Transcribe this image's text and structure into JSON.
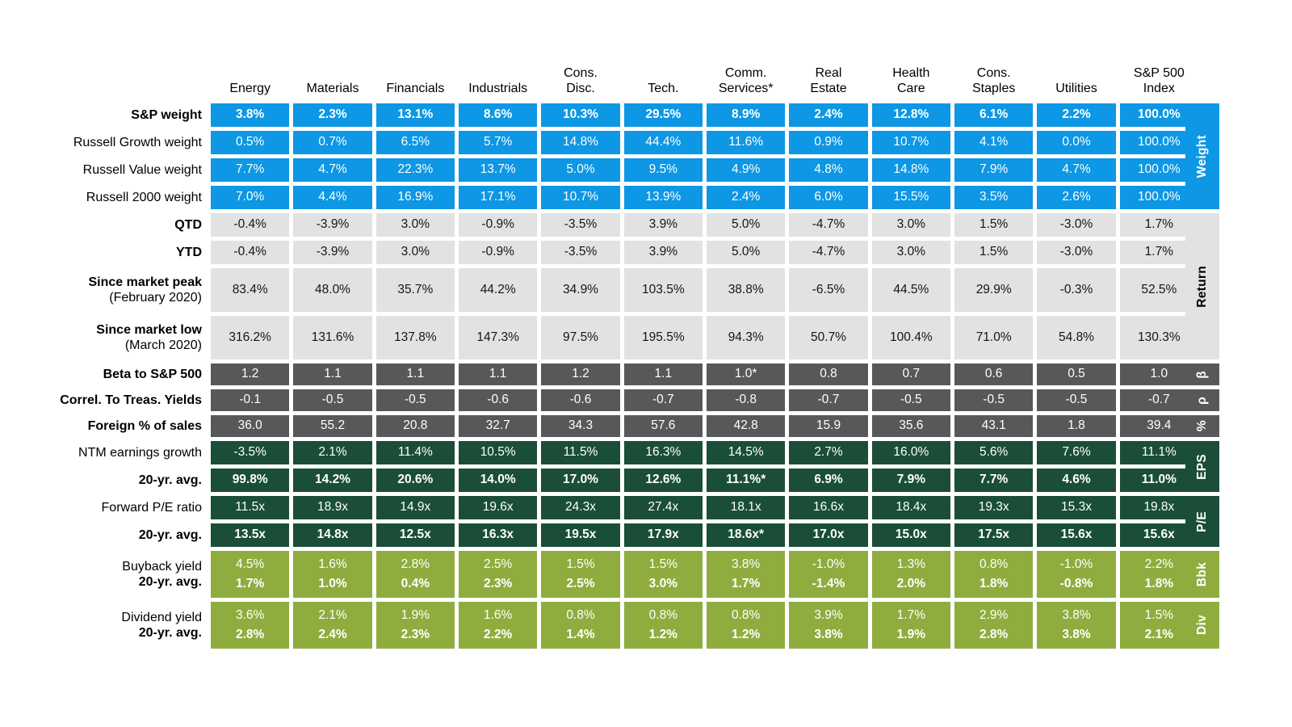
{
  "chart_data": {
    "type": "table",
    "colors": {
      "blue": "#0d97e4",
      "gray": "#e2e2e2",
      "dark": "#56585a",
      "darkgreen": "#1a4e38",
      "lightgreen": "#8fad3e"
    },
    "columns": [
      "Energy",
      "Materials",
      "Financials",
      "Industrials",
      "Cons.\nDisc.",
      "Tech.",
      "Comm.\nServices*",
      "Real\nEstate",
      "Health\nCare",
      "Cons.\nStaples",
      "Utilities",
      "S&P 500\nIndex"
    ],
    "rows": [
      {
        "label": "S&P weight",
        "label_bold": true,
        "style": "blue",
        "bold": true,
        "values": [
          "3.8%",
          "2.3%",
          "13.1%",
          "8.6%",
          "10.3%",
          "29.5%",
          "8.9%",
          "2.4%",
          "12.8%",
          "6.1%",
          "2.2%",
          "100.0%"
        ]
      },
      {
        "label": "Russell Growth weight",
        "label_bold": false,
        "style": "blue",
        "values": [
          "0.5%",
          "0.7%",
          "6.5%",
          "5.7%",
          "14.8%",
          "44.4%",
          "11.6%",
          "0.9%",
          "10.7%",
          "4.1%",
          "0.0%",
          "100.0%"
        ]
      },
      {
        "label": "Russell Value weight",
        "label_bold": false,
        "style": "blue",
        "values": [
          "7.7%",
          "4.7%",
          "22.3%",
          "13.7%",
          "5.0%",
          "9.5%",
          "4.9%",
          "4.8%",
          "14.8%",
          "7.9%",
          "4.7%",
          "100.0%"
        ]
      },
      {
        "label": "Russell 2000 weight",
        "label_bold": false,
        "style": "blue",
        "values": [
          "7.0%",
          "4.4%",
          "16.9%",
          "17.1%",
          "10.7%",
          "13.9%",
          "2.4%",
          "6.0%",
          "15.5%",
          "3.5%",
          "2.6%",
          "100.0%"
        ]
      },
      {
        "label": "QTD",
        "label_bold": true,
        "style": "gray",
        "values": [
          "-0.4%",
          "-3.9%",
          "3.0%",
          "-0.9%",
          "-3.5%",
          "3.9%",
          "5.0%",
          "-4.7%",
          "3.0%",
          "1.5%",
          "-3.0%",
          "1.7%"
        ]
      },
      {
        "label": "YTD",
        "label_bold": true,
        "style": "gray",
        "values": [
          "-0.4%",
          "-3.9%",
          "3.0%",
          "-0.9%",
          "-3.5%",
          "3.9%",
          "5.0%",
          "-4.7%",
          "3.0%",
          "1.5%",
          "-3.0%",
          "1.7%"
        ]
      },
      {
        "label": "Since market peak",
        "label_bold": true,
        "sublabel": "(February 2020)",
        "style": "gray",
        "values": [
          "83.4%",
          "48.0%",
          "35.7%",
          "44.2%",
          "34.9%",
          "103.5%",
          "38.8%",
          "-6.5%",
          "44.5%",
          "29.9%",
          "-0.3%",
          "52.5%"
        ]
      },
      {
        "label": "Since market low",
        "label_bold": true,
        "sublabel": "(March 2020)",
        "style": "gray",
        "values": [
          "316.2%",
          "131.6%",
          "137.8%",
          "147.3%",
          "97.5%",
          "195.5%",
          "94.3%",
          "50.7%",
          "100.4%",
          "71.0%",
          "54.8%",
          "130.3%"
        ]
      },
      {
        "label": "Beta to S&P 500",
        "label_bold": true,
        "style": "dark",
        "values": [
          "1.2",
          "1.1",
          "1.1",
          "1.1",
          "1.2",
          "1.1",
          "1.0*",
          "0.8",
          "0.7",
          "0.6",
          "0.5",
          "1.0"
        ]
      },
      {
        "label": "Correl. To Treas. Yields",
        "label_bold": true,
        "style": "dark",
        "values": [
          "-0.1",
          "-0.5",
          "-0.5",
          "-0.6",
          "-0.6",
          "-0.7",
          "-0.8",
          "-0.7",
          "-0.5",
          "-0.5",
          "-0.5",
          "-0.7"
        ]
      },
      {
        "label": "Foreign % of sales",
        "label_bold": true,
        "style": "dark",
        "values": [
          "36.0",
          "55.2",
          "20.8",
          "32.7",
          "34.3",
          "57.6",
          "42.8",
          "15.9",
          "35.6",
          "43.1",
          "1.8",
          "39.4"
        ]
      },
      {
        "label": "NTM earnings growth",
        "label_bold": false,
        "style": "darkgreen",
        "values": [
          "-3.5%",
          "2.1%",
          "11.4%",
          "10.5%",
          "11.5%",
          "16.3%",
          "14.5%",
          "2.7%",
          "16.0%",
          "5.6%",
          "7.6%",
          "11.1%"
        ]
      },
      {
        "label": "20-yr. avg.",
        "label_bold": true,
        "style": "darkgreen",
        "bold": true,
        "values": [
          "99.8%",
          "14.2%",
          "20.6%",
          "14.0%",
          "17.0%",
          "12.6%",
          "11.1%*",
          "6.9%",
          "7.9%",
          "7.7%",
          "4.6%",
          "11.0%"
        ]
      },
      {
        "label": "Forward P/E ratio",
        "label_bold": false,
        "style": "darkgreen",
        "values": [
          "11.5x",
          "18.9x",
          "14.9x",
          "19.6x",
          "24.3x",
          "27.4x",
          "18.1x",
          "16.6x",
          "18.4x",
          "19.3x",
          "15.3x",
          "19.8x"
        ]
      },
      {
        "label": "20-yr. avg.",
        "label_bold": true,
        "style": "darkgreen",
        "bold": true,
        "values": [
          "13.5x",
          "14.8x",
          "12.5x",
          "16.3x",
          "19.5x",
          "17.9x",
          "18.6x*",
          "17.0x",
          "15.0x",
          "17.5x",
          "15.6x",
          "15.6x"
        ]
      },
      {
        "label": "Buyback yield",
        "label_bold": false,
        "label2": "20-yr. avg.",
        "style": "lightgreen",
        "values": [
          "4.5%",
          "1.6%",
          "2.8%",
          "2.5%",
          "1.5%",
          "1.5%",
          "3.8%",
          "-1.0%",
          "1.3%",
          "0.8%",
          "-1.0%",
          "2.2%"
        ],
        "values2": [
          "1.7%",
          "1.0%",
          "0.4%",
          "2.3%",
          "2.5%",
          "3.0%",
          "1.7%",
          "-1.4%",
          "2.0%",
          "1.8%",
          "-0.8%",
          "1.8%"
        ]
      },
      {
        "label": "Dividend yield",
        "label_bold": false,
        "label2": "20-yr. avg.",
        "style": "lightgreen",
        "values": [
          "3.6%",
          "2.1%",
          "1.9%",
          "1.6%",
          "0.8%",
          "0.8%",
          "0.8%",
          "3.9%",
          "1.7%",
          "2.9%",
          "3.8%",
          "1.5%"
        ],
        "values2": [
          "2.8%",
          "2.4%",
          "2.3%",
          "2.2%",
          "1.4%",
          "1.2%",
          "1.2%",
          "3.8%",
          "1.9%",
          "2.8%",
          "3.8%",
          "2.1%"
        ]
      }
    ],
    "side_labels": [
      {
        "text": "Weight",
        "style": "blue",
        "from": 0,
        "to": 3
      },
      {
        "text": "Return",
        "style": "gray",
        "from": 4,
        "to": 7
      },
      {
        "text": "β",
        "style": "dark",
        "from": 8,
        "to": 8
      },
      {
        "text": "ρ",
        "style": "dark",
        "from": 9,
        "to": 9
      },
      {
        "text": "%",
        "style": "dark",
        "from": 10,
        "to": 10
      },
      {
        "text": "EPS",
        "style": "darkgreen",
        "from": 11,
        "to": 12
      },
      {
        "text": "P/E",
        "style": "darkgreen",
        "from": 13,
        "to": 14
      },
      {
        "text": "Bbk",
        "style": "lightgreen",
        "from": 15,
        "to": 15
      },
      {
        "text": "Div",
        "style": "lightgreen",
        "from": 16,
        "to": 16
      }
    ]
  }
}
